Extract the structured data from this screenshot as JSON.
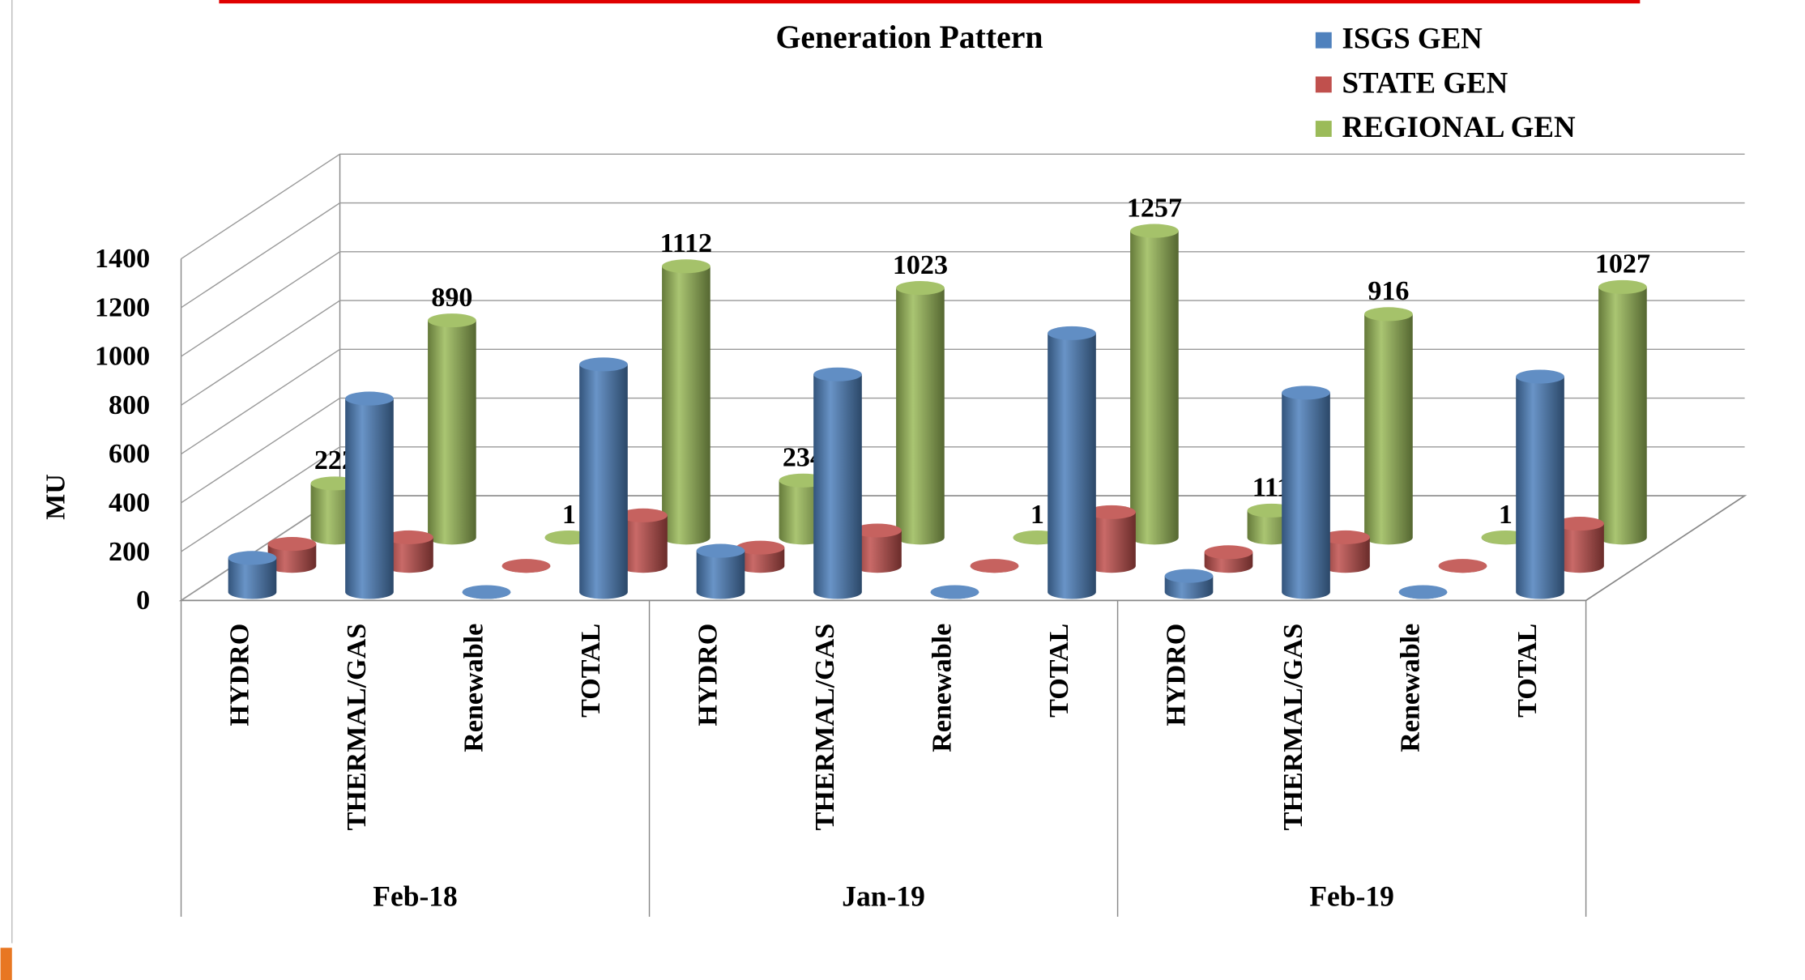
{
  "chart_data": {
    "type": "bar3d",
    "title": "Generation Pattern",
    "y_label": "MU",
    "groups": [
      "Feb-18",
      "Jan-19",
      "Feb-19"
    ],
    "categories": [
      "HYDRO",
      "THERMAL/GAS",
      "Renewable",
      "TOTAL",
      "HYDRO",
      "THERMAL/GAS",
      "Renewable",
      "TOTAL",
      "HYDRO",
      "THERMAL/GAS",
      "Renewable",
      "TOTAL"
    ],
    "series": [
      {
        "name": "ISGS GEN",
        "color": "#4f81bd",
        "values": [
          140,
          793,
          0,
          933,
          169,
          892,
          0,
          1061,
          66,
          817,
          0,
          883
        ]
      },
      {
        "name": "STATE GEN",
        "color": "#c0504d",
        "values": [
          90,
          117,
          0,
          207,
          75,
          145,
          0,
          220,
          56,
          117,
          0,
          173
        ]
      },
      {
        "name": "REGIONAL GEN",
        "color": "#9bbb59",
        "values": [
          222,
          890,
          1,
          1112,
          234,
          1023,
          1,
          1257,
          111,
          916,
          1,
          1027
        ],
        "show_labels": true
      }
    ],
    "ylim": [
      0,
      1400
    ],
    "yticks": [
      0,
      200,
      400,
      600,
      800,
      1000,
      1200,
      1400
    ],
    "grid": true
  }
}
